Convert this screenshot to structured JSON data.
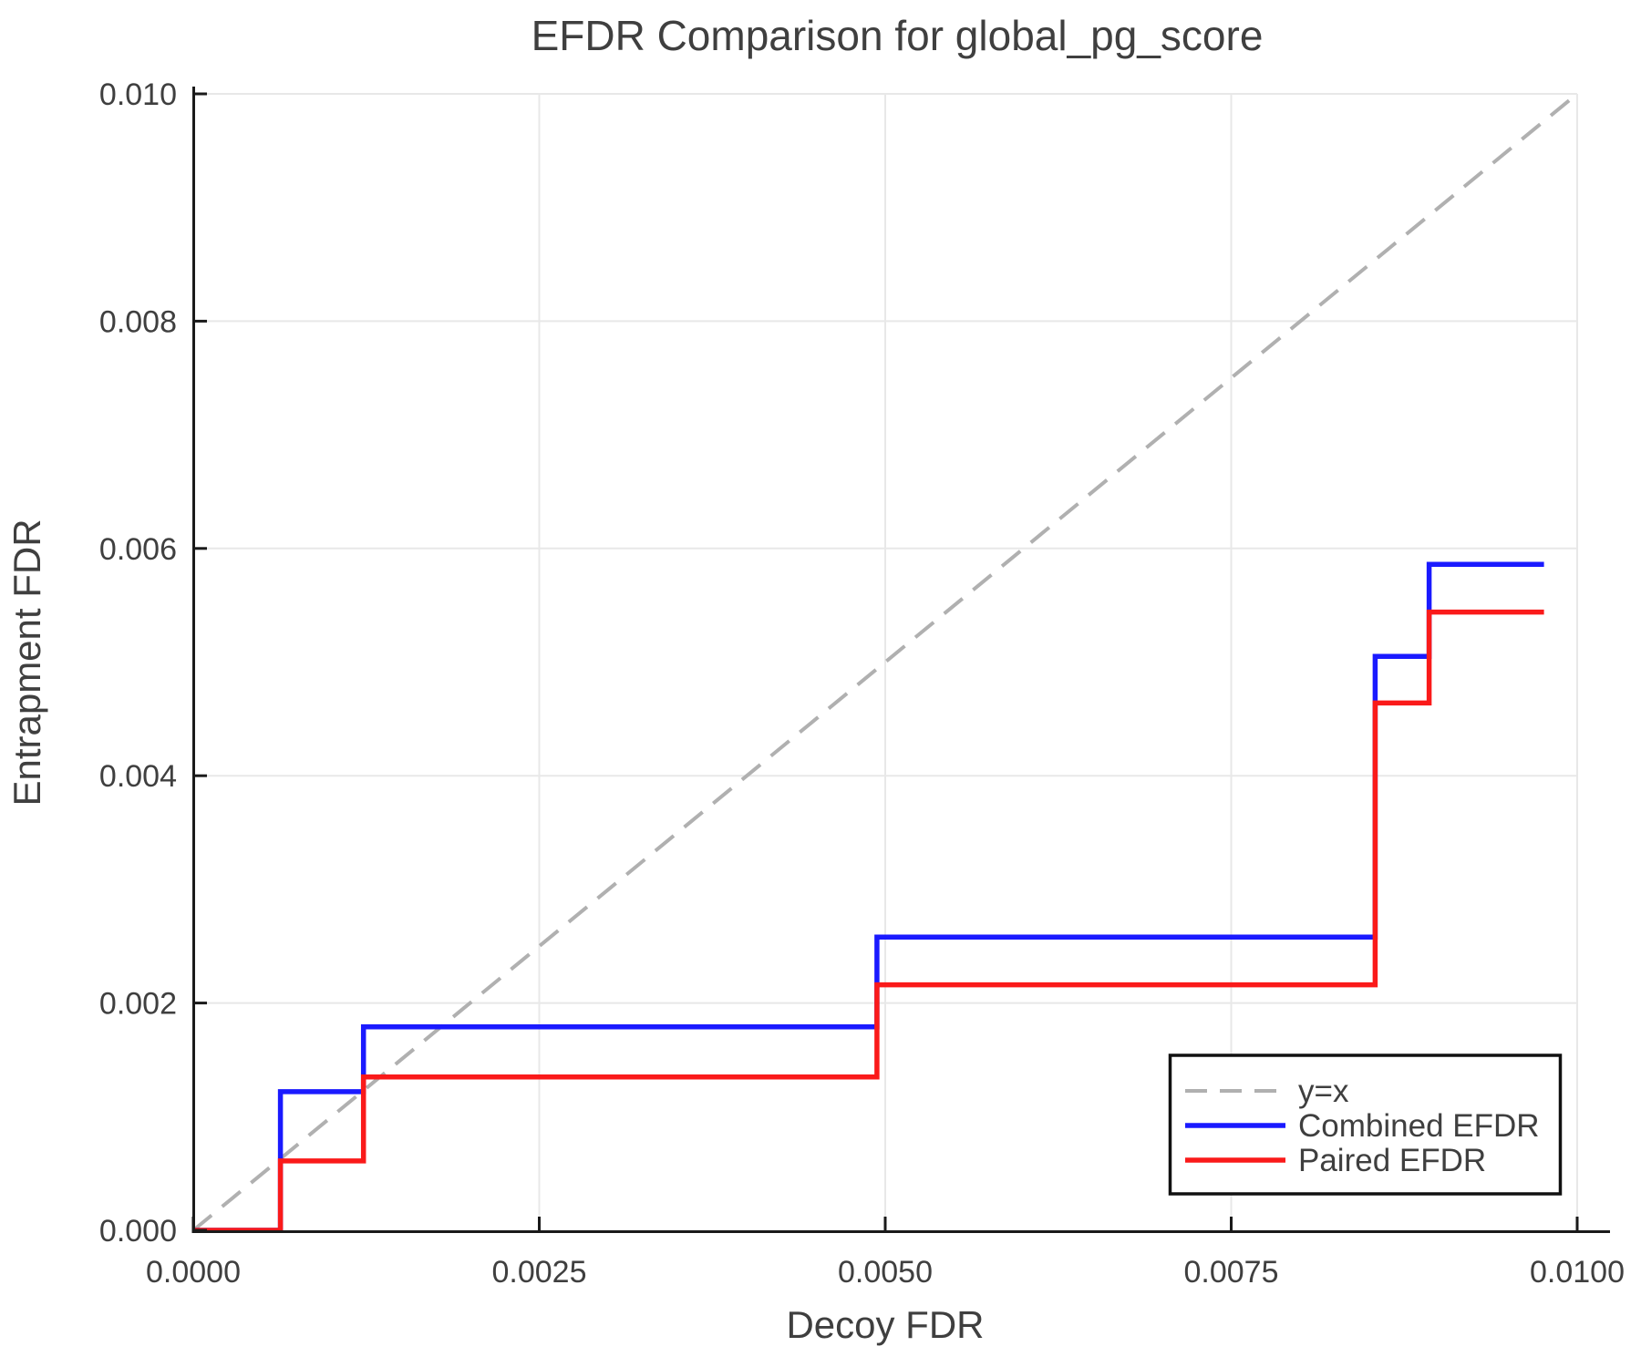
{
  "figure": {
    "title": "EFDR Comparison for global_pg_score",
    "x_axis": {
      "label": "Decoy FDR",
      "tick_labels": [
        "0.0000",
        "0.0025",
        "0.0050",
        "0.0075",
        "0.0100"
      ],
      "tick_values": [
        0,
        0.0025,
        0.005,
        0.0075,
        0.01
      ],
      "range": [
        0,
        0.01
      ]
    },
    "y_axis": {
      "label": "Entrapment FDR",
      "tick_labels": [
        "0.000",
        "0.002",
        "0.004",
        "0.006",
        "0.008",
        "0.010"
      ],
      "tick_values": [
        0,
        0.002,
        0.004,
        0.006,
        0.008,
        0.01
      ],
      "range": [
        0,
        0.01
      ]
    },
    "legend": {
      "entries": [
        {
          "label": "y=x",
          "color": "#b0b0b0",
          "dash": true
        },
        {
          "label": "Combined EFDR",
          "color": "#1a1aff",
          "dash": false
        },
        {
          "label": "Paired EFDR",
          "color": "#fa1a1a",
          "dash": false
        }
      ]
    },
    "colors": {
      "grid": "#e8e8e8",
      "spine": "#1a1a1a",
      "reference": "#b0b0b0",
      "combined": "#1a1aff",
      "paired": "#fa1a1a",
      "text": "#3f3f3f",
      "legend_border": "#111111",
      "background": "#ffffff"
    }
  },
  "chart_data": {
    "type": "line",
    "title": "EFDR Comparison for global_pg_score",
    "xlabel": "Decoy FDR",
    "ylabel": "Entrapment FDR",
    "xlim": [
      0,
      0.01
    ],
    "ylim": [
      0,
      0.01
    ],
    "grid": true,
    "legend_position": "lower right",
    "series": [
      {
        "name": "y=x",
        "style": "dashed",
        "color": "#b0b0b0",
        "x": [
          0,
          0.01
        ],
        "y": [
          0,
          0.01
        ]
      },
      {
        "name": "Combined EFDR",
        "style": "solid",
        "color": "#1a1aff",
        "x": [
          0,
          0.00063,
          0.00063,
          0.00123,
          0.00123,
          0.00494,
          0.00494,
          0.00854,
          0.00854,
          0.00893,
          0.00893,
          0.00976
        ],
        "y": [
          0,
          0,
          0.00122,
          0.00122,
          0.00179,
          0.00179,
          0.00258,
          0.00258,
          0.00505,
          0.00505,
          0.00586,
          0.00586
        ]
      },
      {
        "name": "Paired EFDR",
        "style": "solid",
        "color": "#fa1a1a",
        "x": [
          0,
          0.00063,
          0.00063,
          0.00123,
          0.00123,
          0.00494,
          0.00494,
          0.00854,
          0.00854,
          0.00893,
          0.00893,
          0.00976
        ],
        "y": [
          0,
          0,
          0.00061,
          0.00061,
          0.00135,
          0.00135,
          0.00216,
          0.00216,
          0.00464,
          0.00464,
          0.00544,
          0.00544
        ]
      }
    ]
  }
}
